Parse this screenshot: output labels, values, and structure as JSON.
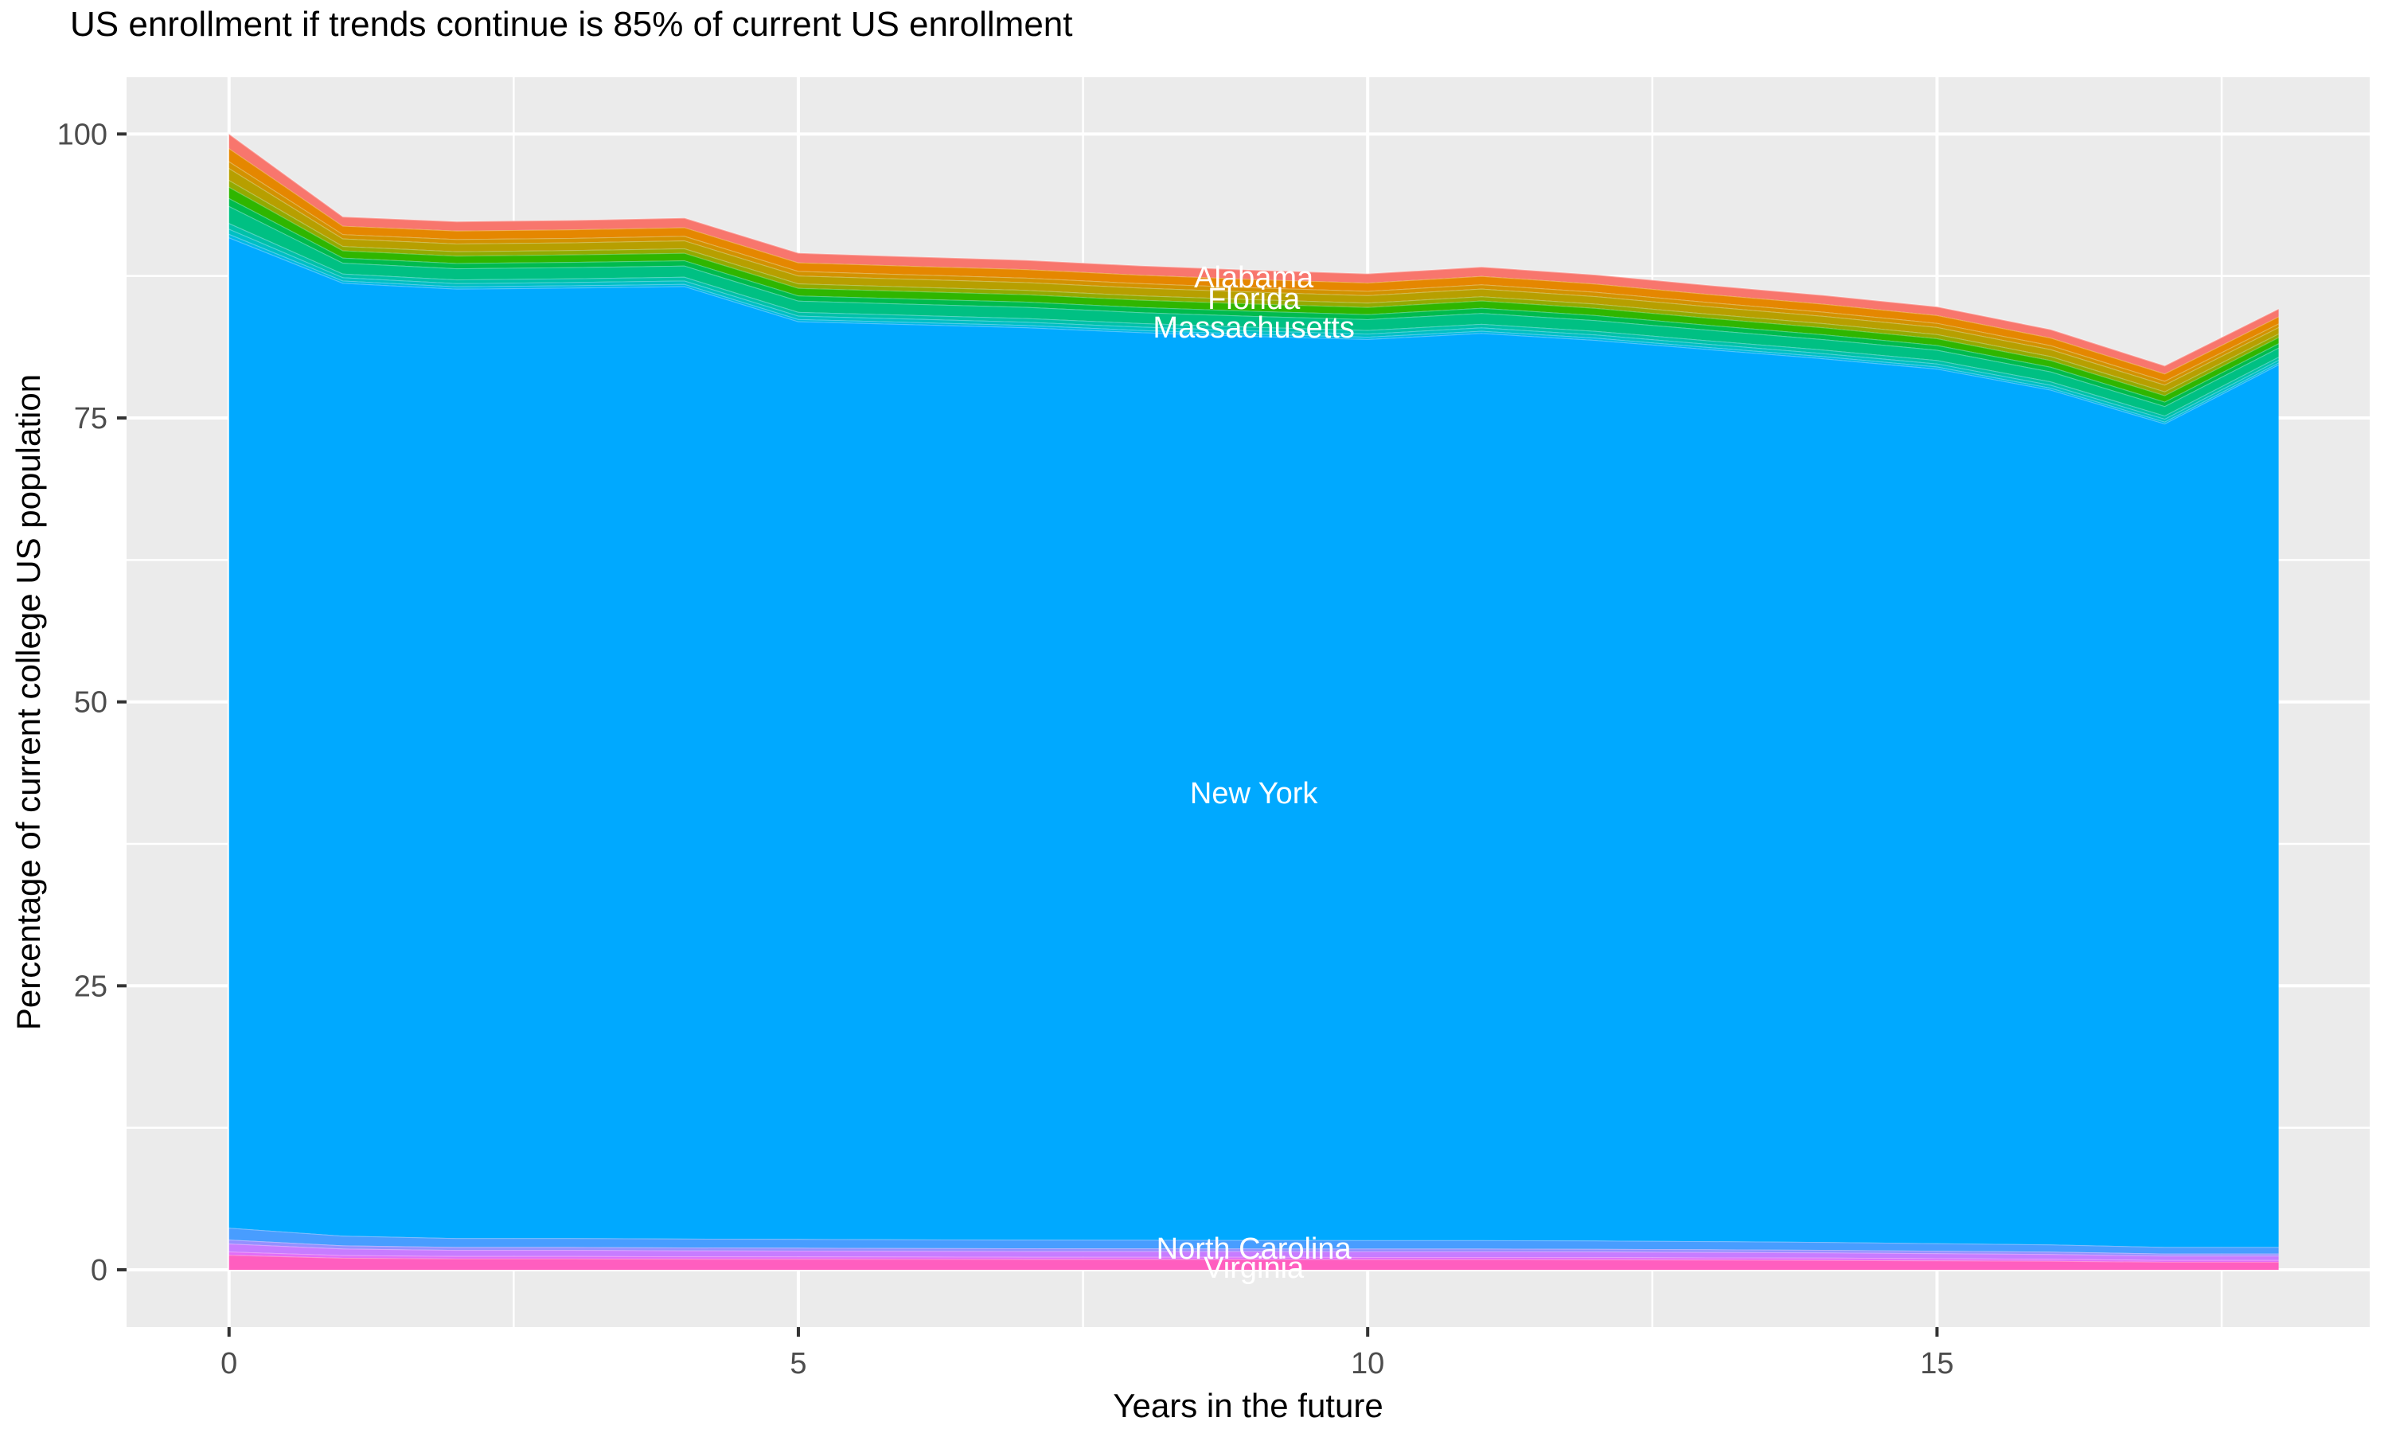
{
  "title": "US enrollment if trends continue is 85% of current US enrollment",
  "x_axis": {
    "label": "Years in the future",
    "ticks": [
      0,
      5,
      10,
      15
    ],
    "minor_ticks": [
      2.5,
      7.5,
      12.5,
      17.5
    ],
    "range": [
      -0.9,
      18.8
    ]
  },
  "y_axis": {
    "label": "Percentage of current college US population",
    "ticks": [
      0,
      25,
      50,
      75,
      100
    ],
    "minor_ticks": [
      12.5,
      37.5,
      62.5,
      87.5
    ],
    "range": [
      -5.05,
      105.0
    ]
  },
  "style": {
    "panel_bg": "#EBEBEB",
    "grid_color": "#FFFFFF",
    "tick_color": "#333333",
    "tick_label_color": "#4D4D4D",
    "title_color": "#000000",
    "band_edge": "rgba(255,255,255,0.30)",
    "annotation_color": "#FFFFFF"
  },
  "chart_data": {
    "type": "area",
    "stacked": true,
    "title": "US enrollment if trends continue is 85% of current US enrollment",
    "xlabel": "Years in the future",
    "ylabel": "Percentage of current college US population",
    "xlim": [
      -0.9,
      18.8
    ],
    "ylim": [
      -5.05,
      105.0
    ],
    "grid": true,
    "legend": false,
    "x": [
      0,
      1,
      2,
      3,
      4,
      5,
      6,
      7,
      8,
      9,
      10,
      11,
      12,
      13,
      14,
      15,
      16,
      17,
      18
    ],
    "series": [
      {
        "name": "Virginia",
        "label": "Virginia",
        "color": "#FF5EBF",
        "values": [
          1.3,
          1.05,
          0.98,
          0.98,
          0.96,
          0.95,
          0.94,
          0.93,
          0.92,
          0.92,
          0.91,
          0.91,
          0.9,
          0.88,
          0.86,
          0.82,
          0.78,
          0.7,
          0.7
        ]
      },
      {
        "name": "unlabeled-band-violet",
        "label": "",
        "color": "#E26EF7",
        "values": [
          0.3,
          0.24,
          0.23,
          0.23,
          0.22,
          0.22,
          0.22,
          0.21,
          0.21,
          0.21,
          0.21,
          0.21,
          0.21,
          0.2,
          0.2,
          0.19,
          0.18,
          0.16,
          0.16
        ]
      },
      {
        "name": "unlabeled-band-purple",
        "label": "",
        "color": "#C77CFF",
        "values": [
          0.7,
          0.57,
          0.53,
          0.53,
          0.52,
          0.51,
          0.5,
          0.5,
          0.5,
          0.49,
          0.49,
          0.49,
          0.49,
          0.48,
          0.46,
          0.44,
          0.42,
          0.38,
          0.38
        ]
      },
      {
        "name": "unlabeled-band-periwinkle",
        "label": "",
        "color": "#9590FF",
        "values": [
          0.35,
          0.28,
          0.26,
          0.26,
          0.26,
          0.26,
          0.25,
          0.25,
          0.25,
          0.25,
          0.25,
          0.25,
          0.24,
          0.24,
          0.23,
          0.22,
          0.21,
          0.19,
          0.19
        ]
      },
      {
        "name": "North Carolina",
        "label": "North Carolina",
        "color": "#489DFF",
        "values": [
          1.05,
          0.85,
          0.79,
          0.79,
          0.78,
          0.77,
          0.76,
          0.75,
          0.75,
          0.74,
          0.74,
          0.74,
          0.73,
          0.71,
          0.69,
          0.66,
          0.63,
          0.57,
          0.57
        ]
      },
      {
        "name": "New York",
        "label": "New York",
        "color": "#00A9FF",
        "values": [
          87.19,
          83.9,
          83.58,
          83.68,
          83.85,
          80.79,
          80.57,
          80.33,
          79.91,
          79.59,
          79.34,
          79.87,
          79.29,
          78.53,
          77.8,
          77.0,
          75.25,
          72.5,
          77.7
        ]
      },
      {
        "name": "unlabeled-band-sky",
        "label": "",
        "color": "#00B9E3",
        "values": [
          0.31,
          0.2,
          0.2,
          0.2,
          0.2,
          0.2,
          0.2,
          0.2,
          0.2,
          0.2,
          0.2,
          0.2,
          0.2,
          0.19,
          0.19,
          0.19,
          0.18,
          0.17,
          0.17
        ]
      },
      {
        "name": "unlabeled-band-cyan",
        "label": "",
        "color": "#00BFC4",
        "values": [
          0.45,
          0.29,
          0.29,
          0.29,
          0.3,
          0.3,
          0.29,
          0.29,
          0.29,
          0.29,
          0.28,
          0.29,
          0.28,
          0.28,
          0.27,
          0.27,
          0.26,
          0.25,
          0.24
        ]
      },
      {
        "name": "unlabeled-band-teal",
        "label": "",
        "color": "#00C1A9",
        "values": [
          0.5,
          0.32,
          0.33,
          0.33,
          0.33,
          0.33,
          0.33,
          0.33,
          0.32,
          0.32,
          0.32,
          0.32,
          0.32,
          0.31,
          0.31,
          0.3,
          0.29,
          0.28,
          0.27
        ]
      },
      {
        "name": "Massachusetts",
        "label": "Massachusetts",
        "color": "#00C083",
        "values": [
          1.5,
          0.96,
          0.98,
          0.98,
          0.99,
          0.99,
          0.98,
          0.98,
          0.96,
          0.96,
          0.95,
          0.96,
          0.95,
          0.93,
          0.92,
          0.9,
          0.88,
          0.84,
          0.81
        ]
      },
      {
        "name": "unlabeled-band-green2",
        "label": "",
        "color": "#00BB4E",
        "values": [
          0.7,
          0.45,
          0.46,
          0.46,
          0.46,
          0.46,
          0.46,
          0.46,
          0.45,
          0.45,
          0.44,
          0.45,
          0.44,
          0.43,
          0.43,
          0.42,
          0.41,
          0.39,
          0.38
        ]
      },
      {
        "name": "unlabeled-band-green1",
        "label": "",
        "color": "#2FB600",
        "values": [
          1.0,
          0.64,
          0.65,
          0.65,
          0.66,
          0.66,
          0.66,
          0.65,
          0.64,
          0.64,
          0.63,
          0.64,
          0.63,
          0.62,
          0.61,
          0.6,
          0.59,
          0.56,
          0.54
        ]
      },
      {
        "name": "unlabeled-band-yellowgreen",
        "label": "",
        "color": "#93AA00",
        "values": [
          0.6,
          0.38,
          0.39,
          0.39,
          0.4,
          0.4,
          0.39,
          0.39,
          0.39,
          0.38,
          0.38,
          0.38,
          0.38,
          0.37,
          0.37,
          0.36,
          0.35,
          0.34,
          0.32
        ]
      },
      {
        "name": "Florida",
        "label": "Florida",
        "color": "#B79F00",
        "values": [
          1.05,
          0.67,
          0.68,
          0.68,
          0.69,
          0.69,
          0.69,
          0.68,
          0.68,
          0.67,
          0.66,
          0.67,
          0.66,
          0.65,
          0.64,
          0.63,
          0.61,
          0.59,
          0.56
        ]
      },
      {
        "name": "unlabeled-band-orange2",
        "label": "",
        "color": "#D39200",
        "values": [
          0.6,
          0.38,
          0.39,
          0.39,
          0.4,
          0.4,
          0.39,
          0.39,
          0.39,
          0.38,
          0.38,
          0.38,
          0.38,
          0.37,
          0.37,
          0.36,
          0.35,
          0.34,
          0.32
        ]
      },
      {
        "name": "unlabeled-band-orange1",
        "label": "",
        "color": "#E58700",
        "values": [
          1.15,
          0.73,
          0.75,
          0.75,
          0.76,
          0.76,
          0.75,
          0.75,
          0.74,
          0.73,
          0.73,
          0.74,
          0.72,
          0.71,
          0.7,
          0.69,
          0.67,
          0.64,
          0.62
        ]
      },
      {
        "name": "Alabama",
        "label": "Alabama",
        "color": "#F8766D",
        "values": [
          1.25,
          0.8,
          0.81,
          0.82,
          0.83,
          0.83,
          0.82,
          0.81,
          0.8,
          0.8,
          0.79,
          0.8,
          0.79,
          0.78,
          0.76,
          0.75,
          0.73,
          0.7,
          0.67
        ]
      }
    ],
    "annotations": [
      {
        "text": "Alabama",
        "x": 9,
        "y": 87.4
      },
      {
        "text": "Florida",
        "x": 9,
        "y": 85.5
      },
      {
        "text": "Massachusetts",
        "x": 9,
        "y": 83.0
      },
      {
        "text": "New York",
        "x": 9,
        "y": 42.0
      },
      {
        "text": "North Carolina",
        "x": 9,
        "y": 1.9
      },
      {
        "text": "Virginia",
        "x": 9,
        "y": 0.2
      }
    ]
  }
}
